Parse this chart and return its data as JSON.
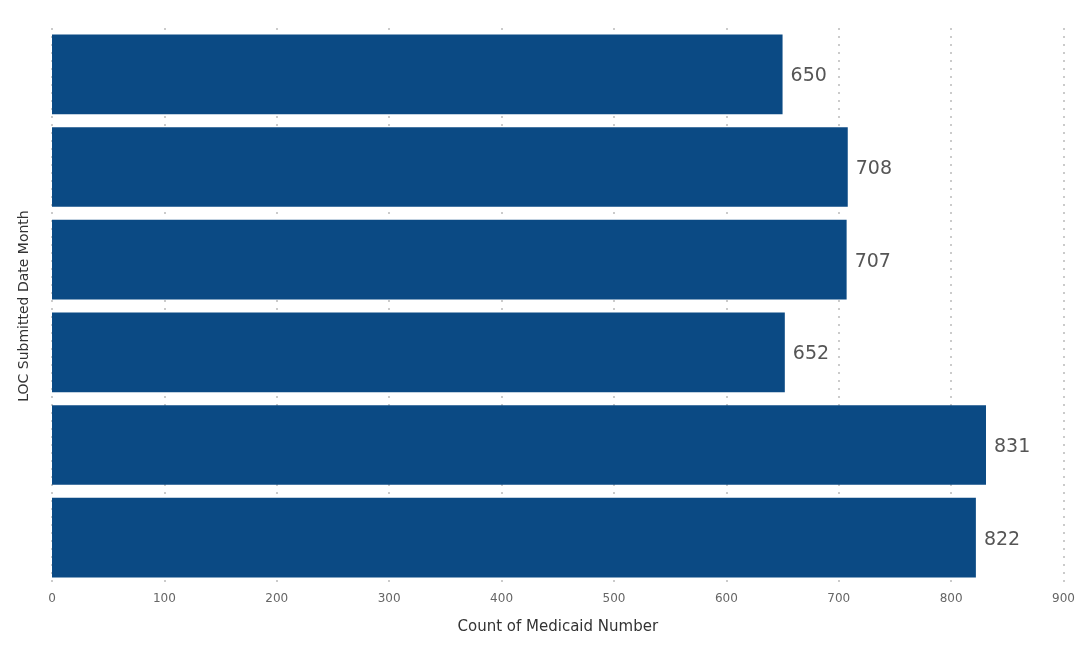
{
  "chart_data": {
    "type": "bar",
    "orientation": "horizontal",
    "xlabel": "Count of Medicaid Number",
    "ylabel": "LOC Submitted Date Month",
    "categories": [
      null,
      null,
      null,
      null,
      null,
      null
    ],
    "values": [
      650,
      708,
      707,
      652,
      831,
      822
    ],
    "color": "#0b4a84",
    "xlim": [
      0,
      900
    ],
    "xticks": [
      0,
      100,
      200,
      300,
      400,
      500,
      600,
      700,
      800,
      900
    ],
    "grid": "x",
    "data_labels": true
  }
}
